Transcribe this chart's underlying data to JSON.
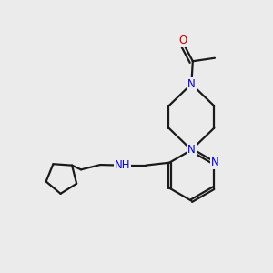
{
  "background_color": "#EBEBEB",
  "bond_color": "#1a1a1a",
  "N_color": "#0000CC",
  "O_color": "#CC0000",
  "line_width": 1.6,
  "font_size_atom": 8.5,
  "figsize": [
    3.0,
    3.0
  ],
  "dpi": 100,
  "xlim": [
    0,
    10
  ],
  "ylim": [
    0,
    10
  ]
}
